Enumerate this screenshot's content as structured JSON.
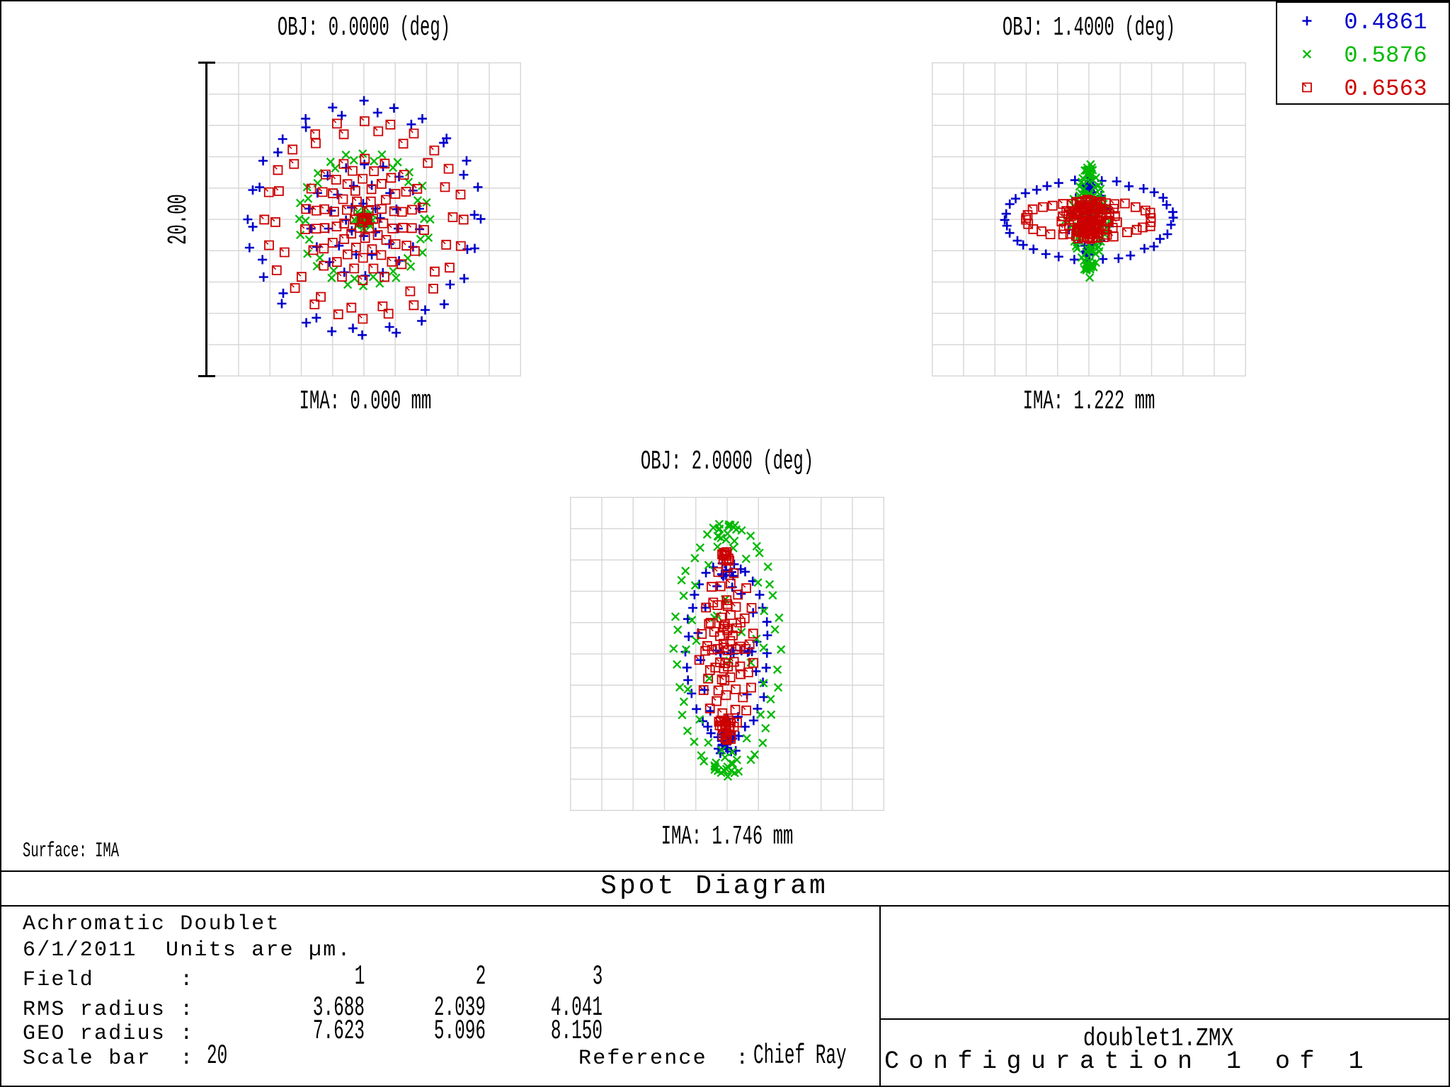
{
  "window_title": "Spot Diagram",
  "band_title": "Spot Diagram",
  "surface_label": "Surface: IMA",
  "scale_label": "20.00",
  "chart_data": {
    "type": "scatter",
    "title": "Spot Diagram",
    "units": "µm",
    "plot_width_um": 20,
    "grid_cells": 10,
    "grid_color": "#d8d8d8",
    "scale_bar_um": 20,
    "reference": "Chief Ray",
    "lens_title": "Achromatic Doublet",
    "date": "6/1/2011",
    "wavelengths": [
      {
        "label": "0.4861",
        "color": "#0000CC",
        "marker": "plus"
      },
      {
        "label": "0.5876",
        "color": "#00B900",
        "marker": "cross"
      },
      {
        "label": "0.6563",
        "color": "#CC0000",
        "marker": "square"
      }
    ],
    "fields": [
      {
        "field_number": 1,
        "obj_label": "OBJ: 0.0000 (deg)",
        "ima_label": "IMA: 0.000 mm",
        "rms_radius_um": 3.688,
        "geo_radius_um": 7.623,
        "series": [
          {
            "wavelength": "0.4861",
            "rings": [
              {
                "rx": 7.43,
                "ry": 7.43,
                "n": 24,
                "phase": 90,
                "jitter": 0.15
              },
              {
                "rx": 6.93,
                "ry": 6.93,
                "n": 18,
                "phase": 97,
                "jitter": 0.15
              },
              {
                "rx": 3.51,
                "ry": 3.51,
                "n": 18,
                "phase": 90,
                "jitter": 0.1
              },
              {
                "rx": 2.25,
                "ry": 2.25,
                "n": 12,
                "phase": 105,
                "jitter": 0.1
              },
              {
                "rx": 1.08,
                "ry": 1.08,
                "n": 8,
                "phase": 90,
                "jitter": 0.08
              }
            ],
            "clusters": [
              {
                "n": 10,
                "rx": 0.32,
                "ry": 0.32
              }
            ]
          },
          {
            "wavelength": "0.5876",
            "rings": [
              {
                "rx": 4.19,
                "ry": 4.19,
                "n": 24,
                "phase": 90,
                "jitter": 0.1
              },
              {
                "rx": 3.74,
                "ry": 3.74,
                "n": 18,
                "phase": 100,
                "jitter": 0.1
              },
              {
                "rx": 0.59,
                "ry": 0.59,
                "n": 8,
                "phase": 90,
                "jitter": 0.05
              }
            ],
            "clusters": [
              {
                "n": 26,
                "rx": 0.36,
                "ry": 0.36
              }
            ]
          },
          {
            "wavelength": "0.6563",
            "rings": [
              {
                "rx": 6.31,
                "ry": 6.31,
                "n": 24,
                "phase": 90,
                "jitter": 0.1
              },
              {
                "rx": 5.54,
                "ry": 5.54,
                "n": 18,
                "phase": 98,
                "jitter": 0.15
              },
              {
                "rx": 3.83,
                "ry": 3.83,
                "n": 18,
                "phase": 90,
                "jitter": 0.1
              },
              {
                "rx": 3.15,
                "ry": 3.15,
                "n": 16,
                "phase": 101,
                "jitter": 0.1
              },
              {
                "rx": 2.52,
                "ry": 2.52,
                "n": 14,
                "phase": 90,
                "jitter": 0.1
              },
              {
                "rx": 1.89,
                "ry": 1.89,
                "n": 12,
                "phase": 105,
                "jitter": 0.1
              },
              {
                "rx": 1.26,
                "ry": 1.26,
                "n": 9,
                "phase": 90,
                "jitter": 0.08
              },
              {
                "rx": 0.63,
                "ry": 0.63,
                "n": 6,
                "phase": 120,
                "jitter": 0.05
              }
            ],
            "clusters": [
              {
                "n": 6,
                "rx": 0.23,
                "ry": 0.23
              }
            ]
          }
        ]
      },
      {
        "field_number": 2,
        "obj_label": "OBJ: 1.4000 (deg)",
        "ima_label": "IMA: 1.222 mm",
        "rms_radius_um": 2.039,
        "geo_radius_um": 5.096,
        "series": [
          {
            "wavelength": "0.4861",
            "rings": [
              {
                "rx": 5.32,
                "ry": 2.57,
                "n": 36,
                "phase": 90,
                "jitter": 0.12
              },
              {
                "rx": 0.36,
                "ry": 2.34,
                "n": 16,
                "phase": 90,
                "jitter": 0.1
              },
              {
                "rx": 1.35,
                "ry": 1.8,
                "n": 10,
                "phase": 90,
                "jitter": 0.12
              }
            ],
            "clusters": [
              {
                "n": 8,
                "rx": 0.27,
                "ry": 0.23,
                "dy": -2.16
              },
              {
                "n": 8,
                "rx": 0.27,
                "ry": 0.23,
                "dy": 2.07
              },
              {
                "n": 10,
                "rx": 0.18,
                "ry": 0.99
              }
            ]
          },
          {
            "wavelength": "0.5876",
            "rings": [
              {
                "rx": 1.35,
                "ry": 3.6,
                "n": 36,
                "phase": 90,
                "shape": "diamond",
                "jitter": 0.15
              },
              {
                "rx": 0.95,
                "ry": 2.88,
                "n": 22,
                "phase": 100,
                "shape": "diamond",
                "jitter": 0.15
              }
            ],
            "clusters": [
              {
                "n": 10,
                "rx": 0.32,
                "ry": 0.36,
                "dy": -3.06
              },
              {
                "n": 10,
                "rx": 0.32,
                "ry": 0.36,
                "dy": 3.06
              },
              {
                "n": 22,
                "rx": 0.5,
                "ry": 2.07
              }
            ]
          },
          {
            "wavelength": "0.6563",
            "rings": [
              {
                "rx": 4.05,
                "ry": 1.13,
                "n": 30,
                "phase": 90,
                "jitter": 0.1
              },
              {
                "rx": 1.76,
                "ry": 1.22,
                "n": 18,
                "phase": 90,
                "jitter": 0.1
              },
              {
                "rx": 1.26,
                "ry": 0.9,
                "n": 12,
                "phase": 100,
                "jitter": 0.1
              }
            ],
            "clusters": [
              {
                "n": 48,
                "rx": 1.35,
                "ry": 0.99,
                "dy": -0.27
              },
              {
                "n": 18,
                "rx": 0.68,
                "ry": 0.59,
                "dy": 0.72
              },
              {
                "n": 10,
                "rx": 0.27,
                "ry": 1.26
              }
            ]
          }
        ]
      },
      {
        "field_number": 3,
        "obj_label": "OBJ: 2.0000 (deg)",
        "ima_label": "IMA: 1.746 mm",
        "rms_radius_um": 4.041,
        "geo_radius_um": 8.15,
        "series": [
          {
            "wavelength": "0.4861",
            "rings": [
              {
                "rx": 2.57,
                "ry": 5.68,
                "n": 36,
                "phase": 90,
                "dy": -0.18,
                "jitter": 0.15
              },
              {
                "rx": 1.89,
                "ry": 4.28,
                "n": 14,
                "phase": 95,
                "dy": -0.18,
                "jitter": 0.2
              }
            ],
            "clusters": [
              {
                "n": 10,
                "rx": 1.8,
                "ry": 0.14,
                "dy": -0.09
              },
              {
                "n": 10,
                "rx": 0.54,
                "ry": 0.41,
                "dy": 5.23
              },
              {
                "n": 8,
                "rx": 0.45,
                "ry": 0.32,
                "dy": -5.05
              },
              {
                "n": 8,
                "rx": 0.63,
                "ry": 0.45,
                "dy": 6.08
              }
            ]
          },
          {
            "wavelength": "0.5876",
            "rings": [
              {
                "rx": 3.24,
                "ry": 7.88,
                "n": 44,
                "phase": 90,
                "dy": -0.27,
                "jitter": 0.2
              },
              {
                "rx": 2.52,
                "ry": 6.53,
                "n": 18,
                "phase": 98,
                "dy": -0.27,
                "jitter": 0.25
              }
            ],
            "clusters": [
              {
                "n": 12,
                "rx": 0.81,
                "ry": 0.59,
                "dy": -7.66
              },
              {
                "n": 12,
                "rx": 0.81,
                "ry": 0.59,
                "dy": 7.12
              },
              {
                "n": 10,
                "rx": 2.03,
                "ry": 4.5,
                "dy": -0.27
              }
            ]
          },
          {
            "wavelength": "0.6563",
            "rings": [
              {
                "rx": 1.67,
                "ry": 5.05,
                "n": 18,
                "phase": 90,
                "dy": -0.36,
                "jitter": 0.15
              },
              {
                "rx": 1.4,
                "ry": 4.05,
                "n": 14,
                "phase": 100,
                "dy": -0.36,
                "jitter": 0.15
              },
              {
                "rx": 1.13,
                "ry": 3.06,
                "n": 12,
                "phase": 90,
                "dy": -0.36,
                "jitter": 0.15
              },
              {
                "rx": 0.86,
                "ry": 2.07,
                "n": 10,
                "phase": 105,
                "dy": -0.36,
                "jitter": 0.12
              },
              {
                "rx": 0.59,
                "ry": 1.17,
                "n": 8,
                "phase": 90,
                "dy": -0.36,
                "jitter": 0.1
              }
            ],
            "clusters": [
              {
                "n": 12,
                "rx": 0.41,
                "ry": 0.36,
                "dy": -6.22
              },
              {
                "n": 16,
                "rx": 0.5,
                "ry": 0.5,
                "dy": 4.41
              },
              {
                "n": 12,
                "rx": 0.27,
                "ry": 3.15,
                "dy": -0.36
              },
              {
                "n": 8,
                "rx": 0.36,
                "ry": 0.27,
                "dy": 5.32
              }
            ]
          }
        ]
      }
    ]
  },
  "info": {
    "title": "Achromatic Doublet",
    "date_units": "6/1/2011  Units are µm.",
    "rows": [
      {
        "label": "Field      :",
        "values": [
          "1",
          "2",
          "3"
        ]
      },
      {
        "label": "RMS radius :",
        "values": [
          "3.688",
          "2.039",
          "4.041"
        ]
      },
      {
        "label": "GEO radius :",
        "values": [
          "7.623",
          "5.096",
          "8.150"
        ]
      }
    ],
    "scale_bar_label": "Scale bar  :",
    "scale_bar_value": "20",
    "reference_label": "Reference  :",
    "reference_value": "Chief Ray"
  },
  "footer": {
    "file": "doublet1.ZMX",
    "config": "Configuration 1 of 1"
  }
}
